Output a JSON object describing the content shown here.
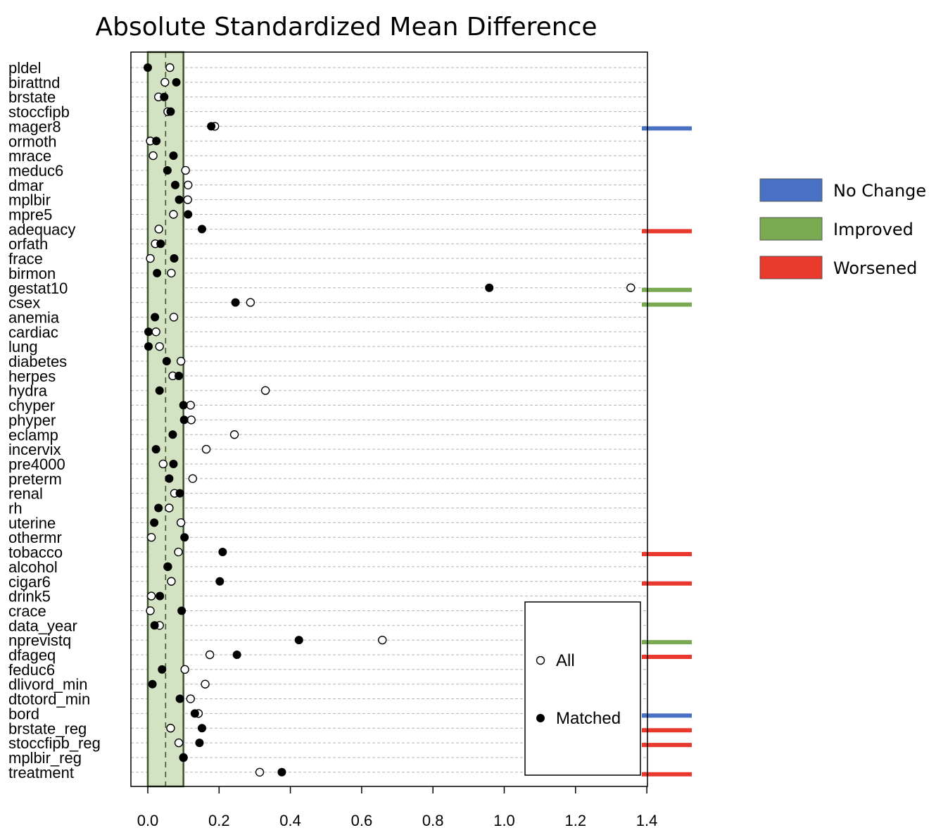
{
  "chart_data": {
    "type": "scatter",
    "title": "Absolute Standardized Mean Difference",
    "xlim": [
      0,
      1.4
    ],
    "xticks": [
      0.0,
      0.2,
      0.4,
      0.6,
      0.8,
      1.0,
      1.2,
      1.4
    ],
    "xtick_labels": [
      "0.0",
      "0.2",
      "0.4",
      "0.6",
      "0.8",
      "1.0",
      "1.2",
      "1.4"
    ],
    "threshold_band": [
      0,
      0.1
    ],
    "threshold_line": 0.05,
    "grid": true,
    "variables": [
      {
        "name": "pldel",
        "all": 0.062,
        "matched": 0.0,
        "status": ""
      },
      {
        "name": "birattnd",
        "all": 0.048,
        "matched": 0.08,
        "status": ""
      },
      {
        "name": "brstate",
        "all": 0.03,
        "matched": 0.046,
        "status": ""
      },
      {
        "name": "stoccfipb",
        "all": 0.056,
        "matched": 0.064,
        "status": ""
      },
      {
        "name": "mager8",
        "all": 0.188,
        "matched": 0.178,
        "status": "No Change"
      },
      {
        "name": "ormoth",
        "all": 0.007,
        "matched": 0.024,
        "status": ""
      },
      {
        "name": "mrace",
        "all": 0.015,
        "matched": 0.072,
        "status": ""
      },
      {
        "name": "meduc6",
        "all": 0.106,
        "matched": 0.055,
        "status": ""
      },
      {
        "name": "dmar",
        "all": 0.113,
        "matched": 0.077,
        "status": ""
      },
      {
        "name": "mplbir",
        "all": 0.112,
        "matched": 0.088,
        "status": ""
      },
      {
        "name": "mpre5",
        "all": 0.072,
        "matched": 0.113,
        "status": ""
      },
      {
        "name": "adequacy",
        "all": 0.031,
        "matched": 0.152,
        "status": "Worsened"
      },
      {
        "name": "orfath",
        "all": 0.021,
        "matched": 0.036,
        "status": ""
      },
      {
        "name": "frace",
        "all": 0.007,
        "matched": 0.074,
        "status": ""
      },
      {
        "name": "birmon",
        "all": 0.066,
        "matched": 0.026,
        "status": ""
      },
      {
        "name": "gestat10",
        "all": 1.355,
        "matched": 0.958,
        "status": "Improved"
      },
      {
        "name": "csex",
        "all": 0.288,
        "matched": 0.246,
        "status": "Improved"
      },
      {
        "name": "anemia",
        "all": 0.073,
        "matched": 0.02,
        "status": ""
      },
      {
        "name": "cardiac",
        "all": 0.023,
        "matched": 0.002,
        "status": ""
      },
      {
        "name": "lung",
        "all": 0.033,
        "matched": 0.002,
        "status": ""
      },
      {
        "name": "diabetes",
        "all": 0.093,
        "matched": 0.053,
        "status": ""
      },
      {
        "name": "herpes",
        "all": 0.07,
        "matched": 0.087,
        "status": ""
      },
      {
        "name": "hydra",
        "all": 0.33,
        "matched": 0.033,
        "status": ""
      },
      {
        "name": "chyper",
        "all": 0.12,
        "matched": 0.1,
        "status": ""
      },
      {
        "name": "phyper",
        "all": 0.122,
        "matched": 0.102,
        "status": ""
      },
      {
        "name": "eclamp",
        "all": 0.243,
        "matched": 0.07,
        "status": ""
      },
      {
        "name": "incervix",
        "all": 0.164,
        "matched": 0.023,
        "status": ""
      },
      {
        "name": "pre4000",
        "all": 0.043,
        "matched": 0.072,
        "status": ""
      },
      {
        "name": "preterm",
        "all": 0.126,
        "matched": 0.06,
        "status": ""
      },
      {
        "name": "renal",
        "all": 0.075,
        "matched": 0.09,
        "status": ""
      },
      {
        "name": "rh",
        "all": 0.06,
        "matched": 0.03,
        "status": ""
      },
      {
        "name": "uterine",
        "all": 0.093,
        "matched": 0.018,
        "status": ""
      },
      {
        "name": "othermr",
        "all": 0.01,
        "matched": 0.103,
        "status": ""
      },
      {
        "name": "tobacco",
        "all": 0.086,
        "matched": 0.21,
        "status": "Worsened"
      },
      {
        "name": "alcohol",
        "all": 0.056,
        "matched": 0.056,
        "status": ""
      },
      {
        "name": "cigar6",
        "all": 0.066,
        "matched": 0.202,
        "status": "Worsened"
      },
      {
        "name": "drink5",
        "all": 0.01,
        "matched": 0.034,
        "status": ""
      },
      {
        "name": "crace",
        "all": 0.007,
        "matched": 0.095,
        "status": ""
      },
      {
        "name": "data_year",
        "all": 0.033,
        "matched": 0.019,
        "status": ""
      },
      {
        "name": "nprevistq",
        "all": 0.658,
        "matched": 0.424,
        "status": "Improved"
      },
      {
        "name": "dfageq",
        "all": 0.174,
        "matched": 0.25,
        "status": "Worsened"
      },
      {
        "name": "feduc6",
        "all": 0.104,
        "matched": 0.04,
        "status": ""
      },
      {
        "name": "dlivord_min",
        "all": 0.161,
        "matched": 0.013,
        "status": ""
      },
      {
        "name": "dtotord_min",
        "all": 0.12,
        "matched": 0.09,
        "status": ""
      },
      {
        "name": "bord",
        "all": 0.142,
        "matched": 0.132,
        "status": "No Change"
      },
      {
        "name": "brstate_reg",
        "all": 0.064,
        "matched": 0.152,
        "status": "Worsened"
      },
      {
        "name": "stoccfipb_reg",
        "all": 0.087,
        "matched": 0.145,
        "status": "Worsened"
      },
      {
        "name": "mplbir_reg",
        "all": 0.1,
        "matched": 0.1,
        "status": ""
      },
      {
        "name": "treatment",
        "all": 0.314,
        "matched": 0.376,
        "status": "Worsened"
      }
    ],
    "status_legend": [
      {
        "label": "No Change",
        "color": "#4a72c4"
      },
      {
        "label": "Improved",
        "color": "#79aa52"
      },
      {
        "label": "Worsened",
        "color": "#e8392c"
      }
    ],
    "point_legend": [
      {
        "label": "All",
        "marker": "open-circle"
      },
      {
        "label": "Matched",
        "marker": "filled-circle"
      }
    ],
    "band_color": "#d3e2c2",
    "band_border_color": "#3d5530"
  }
}
